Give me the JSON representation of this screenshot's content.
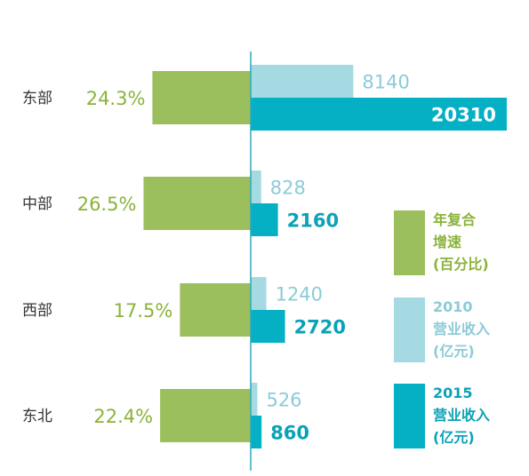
{
  "colors": {
    "growth": "#9bbf5c",
    "growth_text": "#8ab33a",
    "rev2010": "#a6dae3",
    "rev2010_text": "#8ccbd8",
    "rev2015": "#05b0c5",
    "rev2015_text": "#0aa2b8",
    "axis": "#2aaab8",
    "inner_label": "#ffffff"
  },
  "chart_data": {
    "type": "bar",
    "categories": [
      "东部",
      "中部",
      "西部",
      "东北"
    ],
    "series": [
      {
        "key": "growth",
        "name": "年复合增速(百分比)",
        "values": [
          24.3,
          26.5,
          17.5,
          22.4
        ],
        "labels": [
          "24.3%",
          "26.5%",
          "17.5%",
          "22.4%"
        ]
      },
      {
        "key": "rev2010",
        "name": "2010营业收入(亿元)",
        "values": [
          8140,
          828,
          1240,
          526
        ],
        "labels": [
          "8140",
          "828",
          "1240",
          "526"
        ]
      },
      {
        "key": "rev2015",
        "name": "2015营业收入(亿元)",
        "values": [
          20310,
          2160,
          2720,
          860
        ],
        "labels": [
          "20310",
          "2160",
          "2720",
          "860"
        ]
      }
    ],
    "grid": false,
    "legend_position": "right"
  },
  "legend": [
    {
      "key": "growth",
      "lines": [
        "年复合",
        "增速",
        "(百分比)"
      ]
    },
    {
      "key": "rev2010",
      "lines": [
        "2010",
        "营业收入",
        "(亿元)"
      ]
    },
    {
      "key": "rev2015",
      "lines": [
        "2015",
        "营业收入",
        "(亿元)"
      ]
    }
  ]
}
